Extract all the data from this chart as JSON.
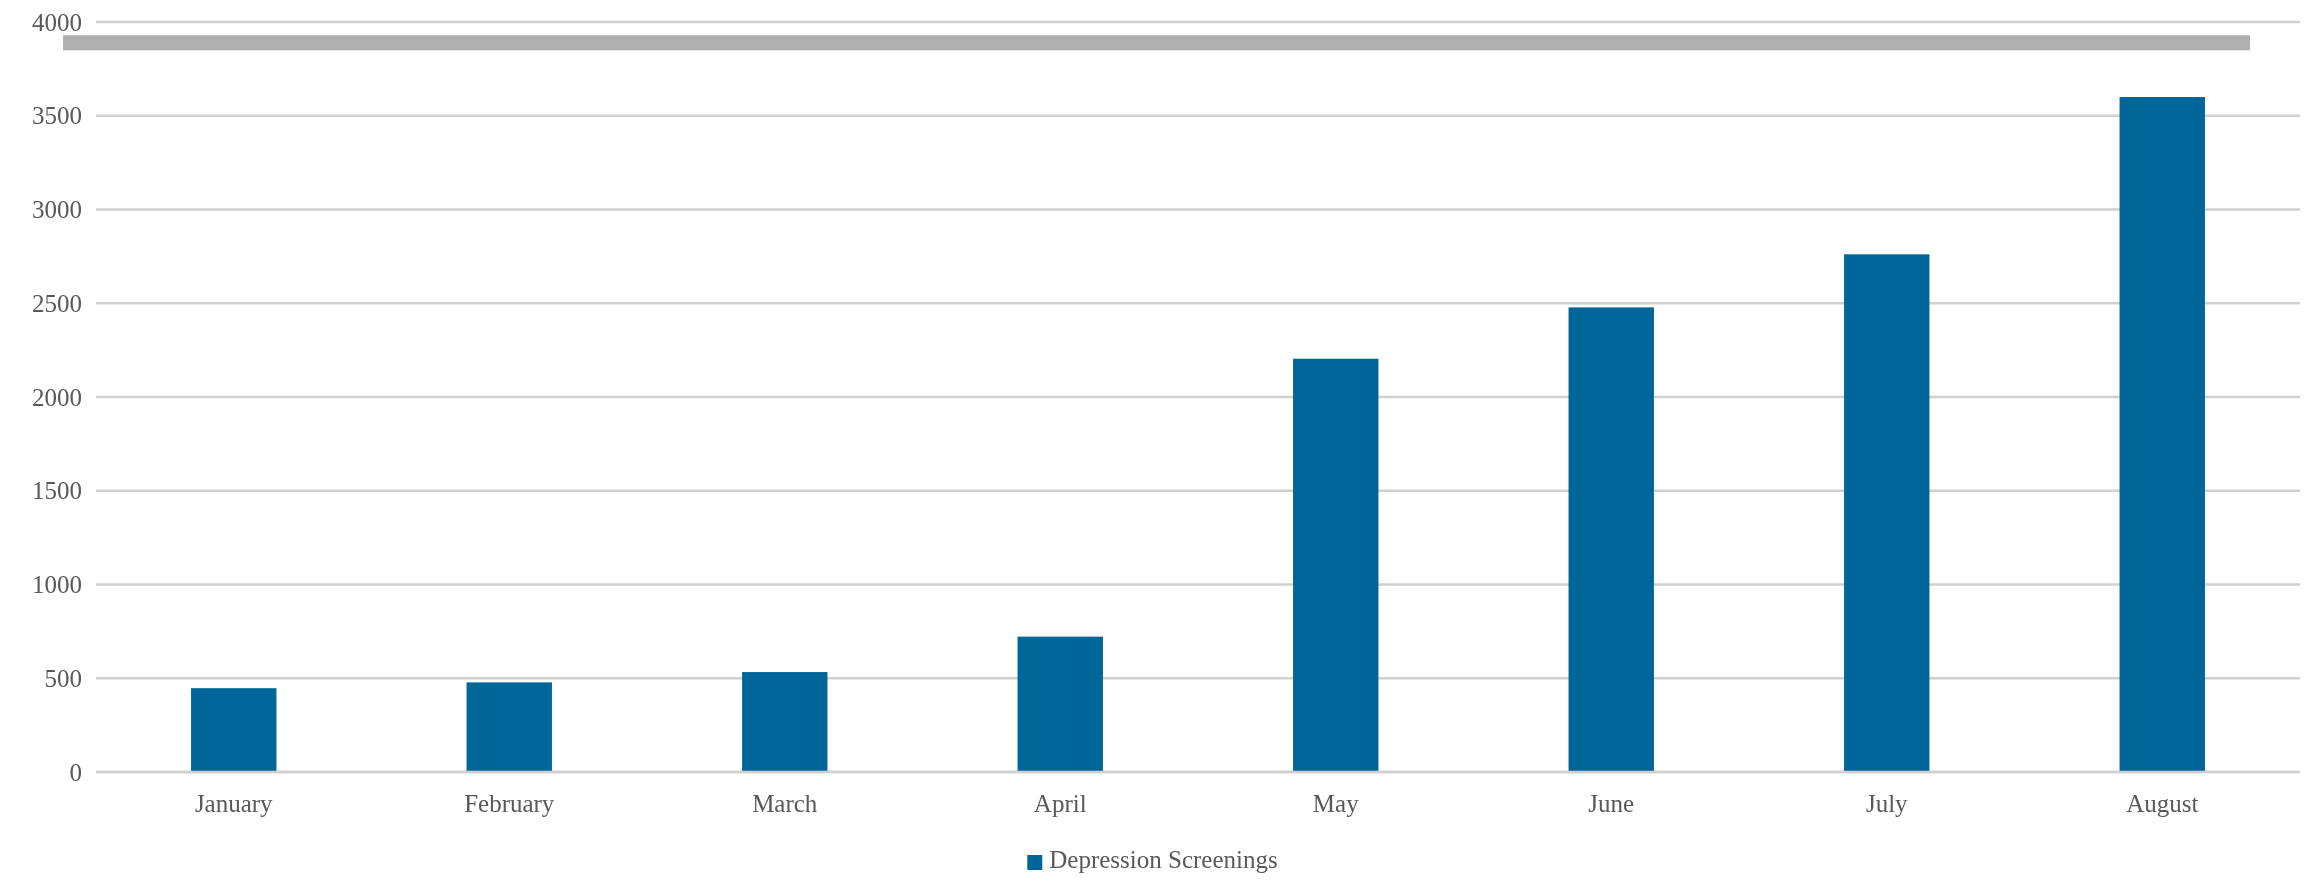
{
  "chart_data": {
    "type": "bar",
    "categories": [
      "January",
      "February",
      "March",
      "April",
      "May",
      "June",
      "July",
      "August"
    ],
    "series": [
      {
        "name": "Depression Screenings",
        "color": "#006699",
        "values": [
          447,
          478,
          533,
          722,
          2204,
          2478,
          2761,
          3600
        ]
      }
    ],
    "ylim": [
      0,
      4000
    ],
    "yticks": [
      0,
      500,
      1000,
      1500,
      2000,
      2500,
      3000,
      3500,
      4000
    ],
    "grid": "y",
    "legend": "bottom",
    "ref_lines": [
      {
        "axis": "y",
        "value": 3890,
        "color": "#b0b0b0"
      }
    ]
  }
}
